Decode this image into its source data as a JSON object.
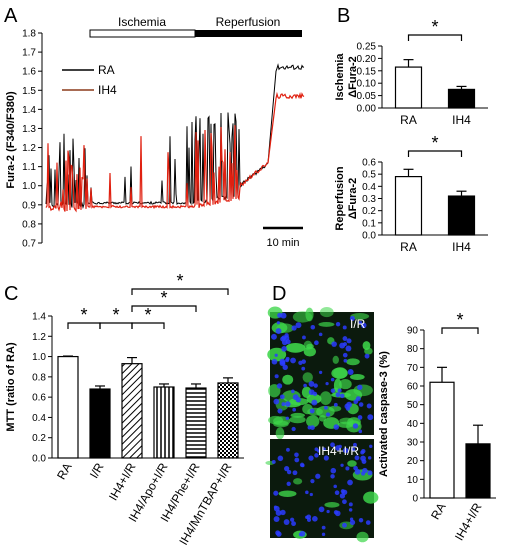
{
  "panels": {
    "A": {
      "letter": "A"
    },
    "B": {
      "letter": "B"
    },
    "C": {
      "letter": "C"
    },
    "D": {
      "letter": "D"
    }
  },
  "colors": {
    "RA": "#000000",
    "IH4": "#e02010",
    "IH4_legend": "#8b3a1a",
    "micrograph_bg": "#0b1a0d",
    "nuclei": "#2a3cff",
    "caspase": "#3dd64a"
  },
  "chart_data": [
    {
      "id": "A",
      "type": "line",
      "ylabel": "Fura-2 (F340/F380)",
      "ylim": [
        0.7,
        1.8
      ],
      "yticks": [
        0.7,
        0.8,
        0.9,
        1.0,
        1.1,
        1.2,
        1.3,
        1.4,
        1.5,
        1.6,
        1.7,
        1.8
      ],
      "period_labels": [
        "Ischemia",
        "Reperfusion"
      ],
      "scale_bar_label": "10 min",
      "series": [
        {
          "name": "RA",
          "color": "#000000",
          "baseline_pre": 0.9,
          "baseline_isch": 0.91,
          "peak": 1.66,
          "plateau": 1.62
        },
        {
          "name": "IH4",
          "color": "#e02010",
          "baseline_pre": 0.88,
          "baseline_isch": 0.89,
          "peak": 1.5,
          "plateau": 1.47
        }
      ]
    },
    {
      "id": "B-top",
      "type": "bar",
      "ylabel_lines": [
        "Ischemia",
        "ΔFura-2"
      ],
      "categories": [
        "RA",
        "IH4"
      ],
      "values": [
        0.165,
        0.075
      ],
      "errors": [
        0.03,
        0.012
      ],
      "fills": [
        "#ffffff",
        "#000000"
      ],
      "ylim": [
        0,
        0.25
      ],
      "yticks": [
        "0.00",
        "0.05",
        "0.10",
        "0.15",
        "0.20",
        "0.25"
      ],
      "significance": "*"
    },
    {
      "id": "B-bottom",
      "type": "bar",
      "ylabel_lines": [
        "Reperfusion",
        "ΔFura-2"
      ],
      "categories": [
        "RA",
        "IH4"
      ],
      "values": [
        0.48,
        0.32
      ],
      "errors": [
        0.06,
        0.04
      ],
      "fills": [
        "#ffffff",
        "#000000"
      ],
      "ylim": [
        0,
        0.6
      ],
      "yticks": [
        "0.0",
        "0.1",
        "0.2",
        "0.3",
        "0.4",
        "0.5",
        "0.6"
      ],
      "significance": "*"
    },
    {
      "id": "C",
      "type": "bar",
      "ylabel": "MTT (ratio of RA)",
      "categories": [
        "RA",
        "I/R",
        "IH4+I/R",
        "IH4/Apo+I/R",
        "IH4/Phe+I/R",
        "IH4/MnTBAP+I/R"
      ],
      "values": [
        1.0,
        0.68,
        0.93,
        0.7,
        0.69,
        0.74
      ],
      "errors": [
        0.005,
        0.03,
        0.06,
        0.03,
        0.04,
        0.05
      ],
      "patterns": [
        "none",
        "solid",
        "diag",
        "vert",
        "horiz",
        "cross"
      ],
      "ylim": [
        0,
        1.4
      ],
      "yticks": [
        "0.0",
        "0.2",
        "0.4",
        "0.6",
        "0.8",
        "1.0",
        "1.2",
        "1.4"
      ],
      "significance": "*"
    },
    {
      "id": "D",
      "type": "bar",
      "ylabel": "Activated caspase-3 (%)",
      "categories": [
        "RA",
        "IH4+I/R"
      ],
      "values": [
        62,
        29
      ],
      "errors": [
        8,
        10
      ],
      "fills": [
        "#ffffff",
        "#000000"
      ],
      "ylim": [
        0,
        90
      ],
      "yticks": [
        "0",
        "10",
        "20",
        "30",
        "40",
        "50",
        "60",
        "70",
        "80",
        "90"
      ],
      "significance": "*"
    }
  ],
  "micrographs": [
    {
      "label": "I/R"
    },
    {
      "label": "IH4+I/R"
    }
  ]
}
